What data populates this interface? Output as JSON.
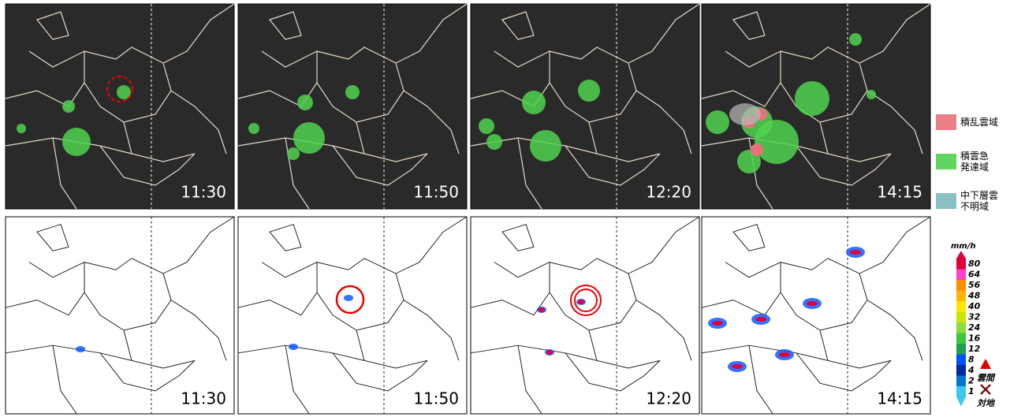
{
  "top_panels": [
    {
      "time": "11:30"
    },
    {
      "time": "11:50"
    },
    {
      "time": "12:20"
    },
    {
      "time": "14:15"
    }
  ],
  "bottom_panels": [
    {
      "time": "11:30"
    },
    {
      "time": "11:50"
    },
    {
      "time": "12:20"
    },
    {
      "time": "14:15"
    }
  ],
  "top_legend": [
    {
      "label": "積乱雲域",
      "color": "#e8707a"
    },
    {
      "label": "積雲急\n発達域",
      "color": "#4fd24f"
    },
    {
      "label": "中下層雲\n不明域",
      "color": "#7cb9bd"
    }
  ],
  "rain_scale": {
    "unit": "mm/h",
    "levels": [
      {
        "label": "80",
        "color": "#e0003c"
      },
      {
        "label": "64",
        "color": "#ff40c8"
      },
      {
        "label": "56",
        "color": "#ff8c00"
      },
      {
        "label": "48",
        "color": "#ffb400"
      },
      {
        "label": "40",
        "color": "#ffe600"
      },
      {
        "label": "32",
        "color": "#c8e600"
      },
      {
        "label": "24",
        "color": "#8cdc3c"
      },
      {
        "label": "16",
        "color": "#3cc83c"
      },
      {
        "label": "12",
        "color": "#1ea050"
      },
      {
        "label": "8",
        "color": "#0050ff"
      },
      {
        "label": "4",
        "color": "#0028a0"
      },
      {
        "label": "2",
        "color": "#0078d2"
      },
      {
        "label": "1",
        "color": "#3cc8f0"
      }
    ]
  },
  "lightning": {
    "cloud": "雲間",
    "ground": "対地"
  }
}
